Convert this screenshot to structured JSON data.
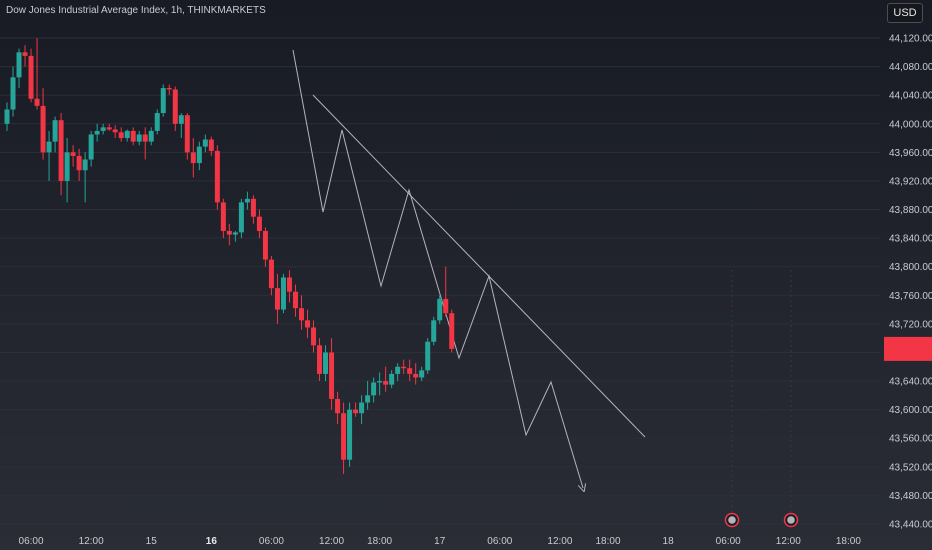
{
  "header": {
    "title": "Dow Jones Industrial Average Index, 1h, THINKMARKETS",
    "currency": "USD"
  },
  "chart_data": {
    "type": "candlestick",
    "title": "Dow Jones Industrial Average Index, 1h, THINKMARKETS",
    "currency": "USD",
    "ylim": [
      43420,
      44150
    ],
    "y_ticks": [
      44120,
      44080,
      44040,
      44000,
      43960,
      43920,
      43880,
      43840,
      43800,
      43760,
      43720,
      43680,
      43640,
      43600,
      43560,
      43520,
      43480,
      43440
    ],
    "x_ticks": [
      {
        "label": "06:00",
        "i": 4
      },
      {
        "label": "12:00",
        "i": 14
      },
      {
        "label": "15",
        "i": 24
      },
      {
        "label": "16",
        "i": 34,
        "bold": true
      },
      {
        "label": "06:00",
        "i": 44
      },
      {
        "label": "12:00",
        "i": 54
      },
      {
        "label": "18:00",
        "i": 62
      },
      {
        "label": "17",
        "i": 72
      },
      {
        "label": "06:00",
        "i": 82
      },
      {
        "label": "12:00",
        "i": 92
      },
      {
        "label": "18:00",
        "i": 100
      },
      {
        "label": "18",
        "i": 110
      },
      {
        "label": "06:00",
        "i": 120
      },
      {
        "label": "12:00",
        "i": 130
      },
      {
        "label": "18:00",
        "i": 140
      }
    ],
    "colors": {
      "up": "#26a69a",
      "down": "#f23645",
      "grid": "#2b2f38",
      "pattern": "#b2b5be",
      "last_price": "#f23645"
    },
    "last_price_label": "",
    "candles": [
      [
        44000,
        44030,
        43990,
        44020
      ],
      [
        44020,
        44080,
        44010,
        44065
      ],
      [
        44065,
        44105,
        44050,
        44100
      ],
      [
        44100,
        44110,
        44080,
        44095
      ],
      [
        44095,
        44105,
        44030,
        44035
      ],
      [
        44035,
        44120,
        44020,
        44025
      ],
      [
        44025,
        44050,
        43950,
        43960
      ],
      [
        43960,
        43990,
        43920,
        43975
      ],
      [
        43975,
        44010,
        43960,
        44005
      ],
      [
        44005,
        44015,
        43900,
        43920
      ],
      [
        43920,
        43980,
        43890,
        43960
      ],
      [
        43960,
        43970,
        43940,
        43955
      ],
      [
        43955,
        43965,
        43920,
        43935
      ],
      [
        43935,
        43960,
        43890,
        43950
      ],
      [
        43950,
        43990,
        43940,
        43985
      ],
      [
        43985,
        44000,
        43975,
        43990
      ],
      [
        43990,
        44000,
        43985,
        43995
      ],
      [
        43995,
        44000,
        43990,
        43992
      ],
      [
        43992,
        43998,
        43980,
        43988
      ],
      [
        43988,
        43995,
        43975,
        43980
      ],
      [
        43980,
        43992,
        43975,
        43990
      ],
      [
        43990,
        43995,
        43970,
        43975
      ],
      [
        43975,
        43990,
        43970,
        43985
      ],
      [
        43985,
        43995,
        43950,
        43975
      ],
      [
        43975,
        43995,
        43970,
        43990
      ],
      [
        43990,
        44020,
        43985,
        44015
      ],
      [
        44015,
        44055,
        44010,
        44050
      ],
      [
        44050,
        44055,
        44040,
        44048
      ],
      [
        44048,
        44052,
        43990,
        44000
      ],
      [
        44000,
        44015,
        43980,
        44012
      ],
      [
        44012,
        44015,
        43950,
        43960
      ],
      [
        43960,
        43980,
        43925,
        43945
      ],
      [
        43945,
        43975,
        43935,
        43968
      ],
      [
        43968,
        43985,
        43960,
        43978
      ],
      [
        43978,
        43982,
        43955,
        43962
      ],
      [
        43962,
        43970,
        43880,
        43890
      ],
      [
        43890,
        43895,
        43840,
        43850
      ],
      [
        43850,
        43860,
        43830,
        43845
      ],
      [
        43845,
        43850,
        43835,
        43848
      ],
      [
        43848,
        43895,
        43840,
        43890
      ],
      [
        43890,
        43905,
        43880,
        43895
      ],
      [
        43895,
        43900,
        43860,
        43870
      ],
      [
        43870,
        43880,
        43840,
        43850
      ],
      [
        43850,
        43855,
        43800,
        43810
      ],
      [
        43810,
        43815,
        43760,
        43770
      ],
      [
        43770,
        43790,
        43720,
        43740
      ],
      [
        43740,
        43790,
        43735,
        43785
      ],
      [
        43785,
        43795,
        43750,
        43765
      ],
      [
        43765,
        43775,
        43730,
        43742
      ],
      [
        43742,
        43760,
        43712,
        43725
      ],
      [
        43725,
        43740,
        43700,
        43715
      ],
      [
        43715,
        43725,
        43680,
        43690
      ],
      [
        43690,
        43700,
        43640,
        43650
      ],
      [
        43650,
        43690,
        43640,
        43680
      ],
      [
        43680,
        43700,
        43600,
        43615
      ],
      [
        43615,
        43625,
        43580,
        43595
      ],
      [
        43595,
        43610,
        43510,
        43530
      ],
      [
        43530,
        43610,
        43520,
        43600
      ],
      [
        43600,
        43610,
        43590,
        43595
      ],
      [
        43595,
        43620,
        43580,
        43610
      ],
      [
        43610,
        43640,
        43600,
        43620
      ],
      [
        43620,
        43645,
        43610,
        43638
      ],
      [
        43638,
        43652,
        43620,
        43640
      ],
      [
        43640,
        43660,
        43625,
        43635
      ],
      [
        43635,
        43655,
        43630,
        43650
      ],
      [
        43650,
        43665,
        43640,
        43660
      ],
      [
        43660,
        43670,
        43650,
        43658
      ],
      [
        43658,
        43670,
        43640,
        43650
      ],
      [
        43650,
        43665,
        43635,
        43645
      ],
      [
        43645,
        43660,
        43640,
        43655
      ],
      [
        43655,
        43700,
        43650,
        43695
      ],
      [
        43695,
        43730,
        43690,
        43725
      ],
      [
        43725,
        43760,
        43720,
        43755
      ],
      [
        43755,
        43800,
        43730,
        43735
      ],
      [
        43735,
        43740,
        43680,
        43685
      ]
    ],
    "markers": [
      "event-marker",
      "event-marker"
    ]
  }
}
